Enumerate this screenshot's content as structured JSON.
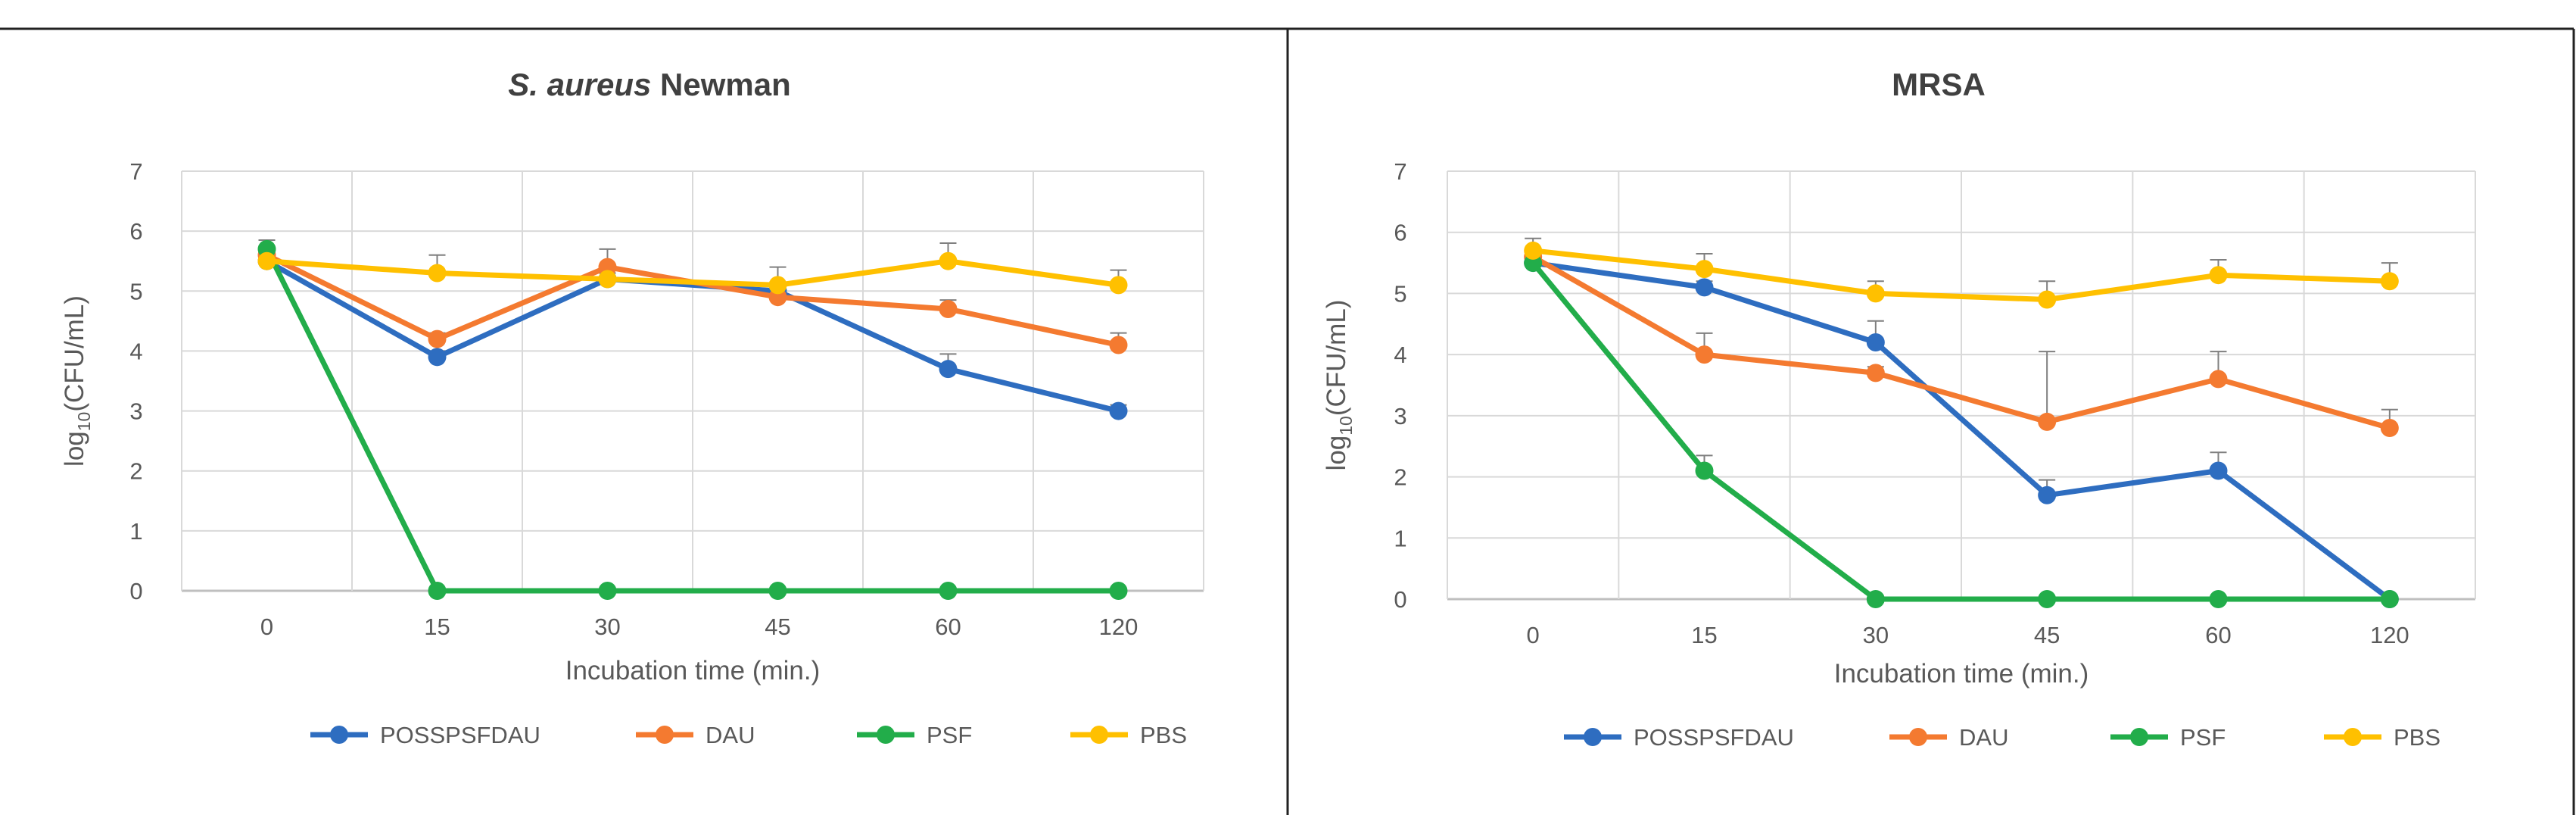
{
  "chart_data": [
    {
      "type": "line",
      "title_italic": "S. aureus",
      "title_rest": " Newman",
      "xlabel": "Incubation time (min.)",
      "ylabel_prefix": "log",
      "ylabel_sub": "10",
      "ylabel_suffix": "(CFU/mL)",
      "categories": [
        "0",
        "15",
        "30",
        "45",
        "60",
        "120"
      ],
      "ylim": [
        0,
        7
      ],
      "yticks": [
        0,
        1,
        2,
        3,
        4,
        5,
        6,
        7
      ],
      "grid": true,
      "legend_position": "bottom",
      "series": [
        {
          "name": "POSSPSFDAU",
          "color": "#2E6DC0",
          "values": [
            5.5,
            3.9,
            5.2,
            5.0,
            3.7,
            3.0
          ],
          "errors": [
            0.1,
            0.1,
            0.15,
            0.1,
            0.25,
            0.1
          ]
        },
        {
          "name": "DAU",
          "color": "#F47A30",
          "values": [
            5.6,
            4.2,
            5.4,
            4.9,
            4.7,
            4.1
          ],
          "errors": [
            0.1,
            0.1,
            0.3,
            0.1,
            0.15,
            0.2
          ]
        },
        {
          "name": "PSF",
          "color": "#22AD4A",
          "values": [
            5.7,
            0,
            0,
            0,
            0,
            0
          ],
          "errors": [
            0.15,
            0,
            0,
            0,
            0,
            0
          ]
        },
        {
          "name": "PBS",
          "color": "#FFC000",
          "values": [
            5.5,
            5.3,
            5.2,
            5.1,
            5.5,
            5.1
          ],
          "errors": [
            0.1,
            0.3,
            0.1,
            0.3,
            0.3,
            0.25
          ]
        }
      ]
    },
    {
      "type": "line",
      "title_italic": "",
      "title_rest": "MRSA",
      "xlabel": "Incubation time (min.)",
      "ylabel_prefix": "log",
      "ylabel_sub": "10",
      "ylabel_suffix": "(CFU/mL)",
      "categories": [
        "0",
        "15",
        "30",
        "45",
        "60",
        "120"
      ],
      "ylim": [
        0,
        7
      ],
      "yticks": [
        0,
        1,
        2,
        3,
        4,
        5,
        6,
        7
      ],
      "grid": true,
      "legend_position": "bottom",
      "series": [
        {
          "name": "POSSPSFDAU",
          "color": "#2E6DC0",
          "values": [
            5.5,
            5.1,
            4.2,
            1.7,
            2.1,
            0
          ],
          "errors": [
            0.1,
            0.1,
            0.35,
            0.25,
            0.3,
            0
          ]
        },
        {
          "name": "DAU",
          "color": "#F47A30",
          "values": [
            5.6,
            4.0,
            3.7,
            2.9,
            3.6,
            2.8
          ],
          "errors": [
            0.1,
            0.35,
            0.1,
            1.15,
            0.45,
            0.3
          ]
        },
        {
          "name": "PSF",
          "color": "#22AD4A",
          "values": [
            5.5,
            2.1,
            0,
            0,
            0,
            0
          ],
          "errors": [
            0.1,
            0.25,
            0,
            0,
            0,
            0
          ]
        },
        {
          "name": "PBS",
          "color": "#FFC000",
          "values": [
            5.7,
            5.4,
            5.0,
            4.9,
            5.3,
            5.2
          ],
          "errors": [
            0.2,
            0.25,
            0.2,
            0.3,
            0.25,
            0.3
          ]
        }
      ]
    }
  ]
}
